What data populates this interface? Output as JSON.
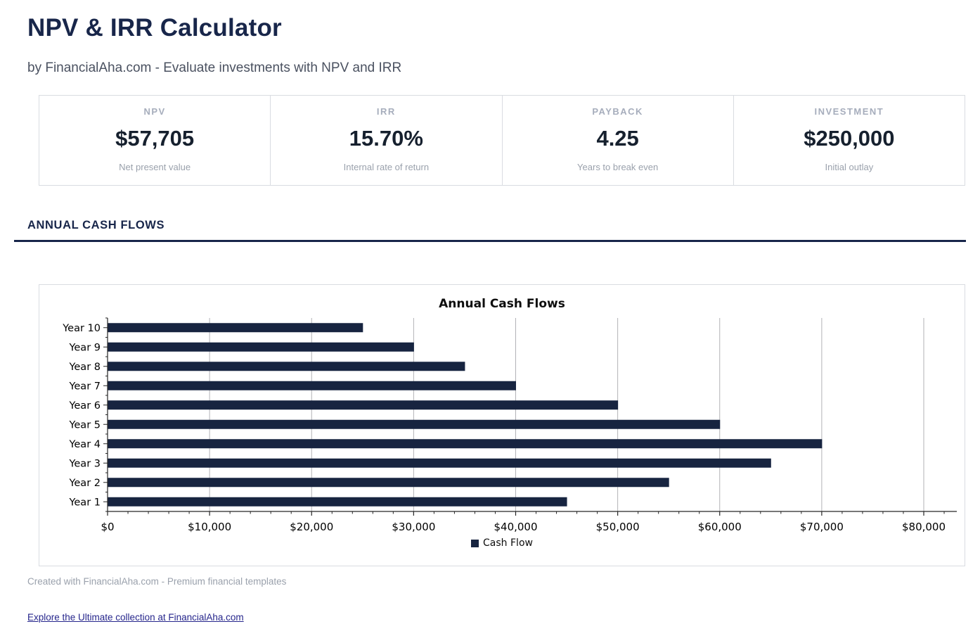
{
  "header": {
    "title": "NPV & IRR Calculator",
    "subtitle": "by FinancialAha.com - Evaluate investments with NPV and IRR"
  },
  "stats": [
    {
      "label": "NPV",
      "value": "$57,705",
      "sublabel": "Net present value"
    },
    {
      "label": "IRR",
      "value": "15.70%",
      "sublabel": "Internal rate of return"
    },
    {
      "label": "PAYBACK",
      "value": "4.25",
      "sublabel": "Years to break even"
    },
    {
      "label": "INVESTMENT",
      "value": "$250,000",
      "sublabel": "Initial outlay"
    }
  ],
  "section": {
    "heading": "ANNUAL CASH FLOWS"
  },
  "chart_data": {
    "type": "bar",
    "orientation": "horizontal",
    "title": "Annual Cash Flows",
    "categories": [
      "Year 1",
      "Year 2",
      "Year 3",
      "Year 4",
      "Year 5",
      "Year 6",
      "Year 7",
      "Year 8",
      "Year 9",
      "Year 10"
    ],
    "values": [
      45000,
      55000,
      65000,
      70000,
      60000,
      50000,
      40000,
      35000,
      30000,
      25000
    ],
    "display_order_top_to_bottom": [
      "Year 10",
      "Year 9",
      "Year 8",
      "Year 7",
      "Year 6",
      "Year 5",
      "Year 4",
      "Year 3",
      "Year 2",
      "Year 1"
    ],
    "xlim": [
      0,
      80000
    ],
    "x_major_tick": 10000,
    "x_minor_tick": 2000,
    "x_tick_labels": [
      "$0",
      "$10,000",
      "$20,000",
      "$30,000",
      "$40,000",
      "$50,000",
      "$60,000",
      "$70,000",
      "$80,000"
    ],
    "legend": [
      "Cash Flow"
    ],
    "legend_position": "bottom-center",
    "grid": "vertical major gridlines",
    "bar_color": "#172440"
  },
  "footer": {
    "note": "Created with FinancialAha.com - Premium financial templates",
    "link_text": "Explore the Ultimate collection at FinancialAha.com"
  },
  "colors": {
    "accent": "#18264a",
    "bar": "#172440",
    "gridline": "#b2b2b6",
    "axis": "#262626",
    "link": "#26268c",
    "muted": "#9aa1ac"
  }
}
